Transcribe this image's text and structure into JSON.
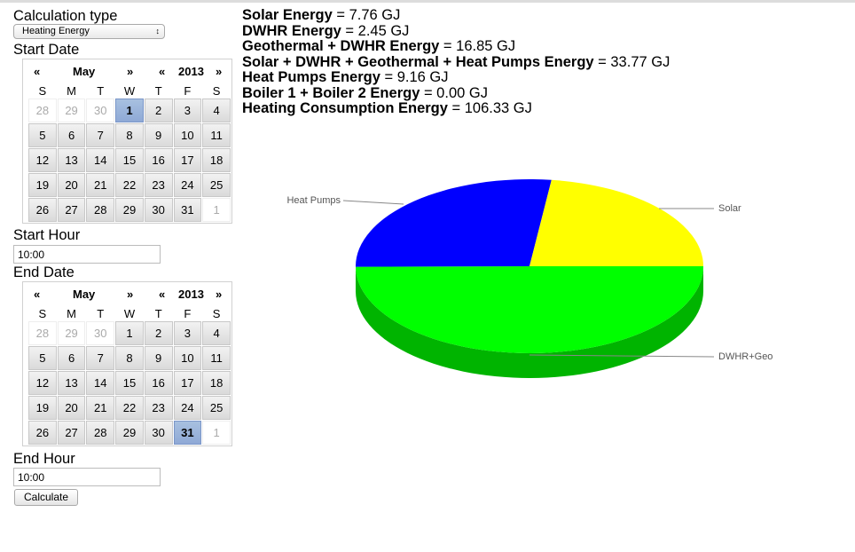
{
  "calc": {
    "title": "Calculation type",
    "selected": "Heating Energy",
    "arrows": "↕"
  },
  "start": {
    "label": "Start Date",
    "month": "May",
    "year": "2013",
    "prev": "«",
    "next": "»",
    "weekdays": [
      "S",
      "M",
      "T",
      "W",
      "T",
      "F",
      "S"
    ],
    "weeks": [
      [
        "28",
        "29",
        "30",
        "1",
        "2",
        "3",
        "4"
      ],
      [
        "5",
        "6",
        "7",
        "8",
        "9",
        "10",
        "11"
      ],
      [
        "12",
        "13",
        "14",
        "15",
        "16",
        "17",
        "18"
      ],
      [
        "19",
        "20",
        "21",
        "22",
        "23",
        "24",
        "25"
      ],
      [
        "26",
        "27",
        "28",
        "29",
        "30",
        "31",
        "1"
      ]
    ],
    "selected_day": "1",
    "hour_label": "Start Hour",
    "hour": "10:00"
  },
  "end": {
    "label": "End Date",
    "month": "May",
    "year": "2013",
    "prev": "«",
    "next": "»",
    "weekdays": [
      "S",
      "M",
      "T",
      "W",
      "T",
      "F",
      "S"
    ],
    "weeks": [
      [
        "28",
        "29",
        "30",
        "1",
        "2",
        "3",
        "4"
      ],
      [
        "5",
        "6",
        "7",
        "8",
        "9",
        "10",
        "11"
      ],
      [
        "12",
        "13",
        "14",
        "15",
        "16",
        "17",
        "18"
      ],
      [
        "19",
        "20",
        "21",
        "22",
        "23",
        "24",
        "25"
      ],
      [
        "26",
        "27",
        "28",
        "29",
        "30",
        "31",
        "1"
      ]
    ],
    "selected_day": "31",
    "hour_label": "End Hour",
    "hour": "10:00"
  },
  "calculate_label": "Calculate",
  "results": [
    {
      "name": "Solar Energy",
      "value": " = 7.76 GJ"
    },
    {
      "name": "DWHR Energy",
      "value": " = 2.45 GJ"
    },
    {
      "name": "Geothermal + DWHR Energy",
      "value": " = 16.85 GJ"
    },
    {
      "name": "Solar + DWHR + Geothermal + Heat Pumps Energy",
      "value": " = 33.77 GJ"
    },
    {
      "name": "Heat Pumps Energy",
      "value": " = 9.16 GJ"
    },
    {
      "name": "Boiler 1 + Boiler 2 Energy",
      "value": " = 0.00 GJ"
    },
    {
      "name": "Heating Consumption Energy",
      "value": " = 106.33 GJ"
    }
  ],
  "chart_data": {
    "type": "pie",
    "slices": [
      {
        "label": "Solar",
        "value": 7.76,
        "color": "#ffff00",
        "side": "#c8c800"
      },
      {
        "label": "DWHR+Geo",
        "value": 16.85,
        "color": "#00ff00",
        "side": "#00b400"
      },
      {
        "label": "Heat Pumps",
        "value": 9.16,
        "color": "#0000ff",
        "side": "#0000a0"
      }
    ]
  }
}
